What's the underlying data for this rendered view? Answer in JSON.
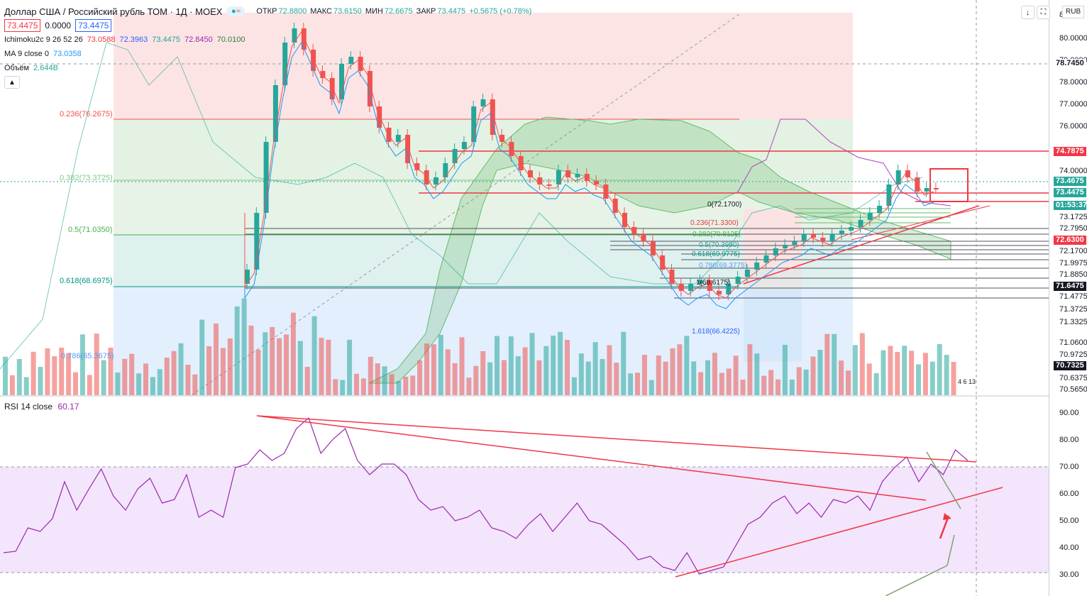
{
  "header": {
    "symbol": "Доллар США / Российский рубль ТОМ · 1Д · MOEX",
    "open_label": "ОТКР",
    "open": "72.8800",
    "high_label": "МАКС",
    "high": "73.6150",
    "low_label": "МИН",
    "low": "72.6675",
    "close_label": "ЗАКР",
    "close": "73.4475",
    "change": "+0.5675 (+0.78%)",
    "bid": "73.4475",
    "spread": "0.0000",
    "ask": "73.4475",
    "currency": "RUB",
    "wave_icon": "wave-icon"
  },
  "indicators": {
    "ichimoku": {
      "label": "Ichimoku2c 9 26 52 26",
      "v1": "73.0588",
      "v2": "72.3963",
      "v3": "73.4475",
      "v4": "72.8450",
      "v5": "70.0100"
    },
    "ma": {
      "label": "MA 9 close 0",
      "value": "73.0358"
    },
    "volume": {
      "label": "Объём",
      "value": "2.644B"
    },
    "collapse_icon": "chevron-up-icon"
  },
  "rsi": {
    "label": "RSI 14 close",
    "value": "60.17"
  },
  "fib_main": [
    {
      "label": "0.236(76.2675)",
      "color": "#ef5350"
    },
    {
      "label": "0.382(73.3725)",
      "color": "#81c784"
    },
    {
      "label": "0.5(71.0350)",
      "color": "#4caf50"
    },
    {
      "label": "0.618(68.6975)",
      "color": "#009688"
    },
    {
      "label": "0.786(65.3675)",
      "color": "#5b9cf6"
    }
  ],
  "fib_small": [
    {
      "label": "0(72.1700)"
    },
    {
      "label": "0.236(71.3300)"
    },
    {
      "label": "0.382(70.8125)"
    },
    {
      "label": "0.5(70.3950)"
    },
    {
      "label": "0.618(69.9775)"
    },
    {
      "label": "0.786(69.3775)"
    },
    {
      "label": "1(68.6175)"
    },
    {
      "label": "1.618(66.4225)"
    }
  ],
  "price_axis": {
    "ticks": [
      "8",
      "80.0000",
      "79.0000",
      "78.0000",
      "77.0000",
      "76.0000",
      "74.0000",
      "73.1725",
      "72.7950",
      "72.1700",
      "71.9975",
      "71.8850",
      "71.4775",
      "71.3725",
      "71.3325",
      "71.0600",
      "70.9725",
      "70.6375",
      "70.5650"
    ],
    "tags": [
      {
        "text": "78.7450",
        "bg": "#ffffff",
        "fg": "#131722"
      },
      {
        "text": "74.7875",
        "bg": "#f23645",
        "fg": "#ffffff"
      },
      {
        "text": "73.4675",
        "bg": "#26a69a",
        "fg": "#ffffff"
      },
      {
        "text": "73.4475",
        "bg": "#26a69a",
        "fg": "#ffffff"
      },
      {
        "text": "01:53:37",
        "bg": "#26a69a",
        "fg": "#ffffff"
      },
      {
        "text": "72.6300",
        "bg": "#f23645",
        "fg": "#ffffff"
      },
      {
        "text": "71.6475",
        "bg": "#131722",
        "fg": "#ffffff"
      },
      {
        "text": "70.7325",
        "bg": "#131722",
        "fg": "#ffffff"
      }
    ],
    "rsi_ticks": [
      "90.00",
      "80.00",
      "70.00",
      "60.00",
      "50.00",
      "40.00",
      "30.00"
    ]
  },
  "events": {
    "label": "4 6 13"
  },
  "colors": {
    "up": "#26a69a",
    "down": "#ef5350",
    "rsi": "#9c27b0",
    "trend": "#f23645"
  }
}
